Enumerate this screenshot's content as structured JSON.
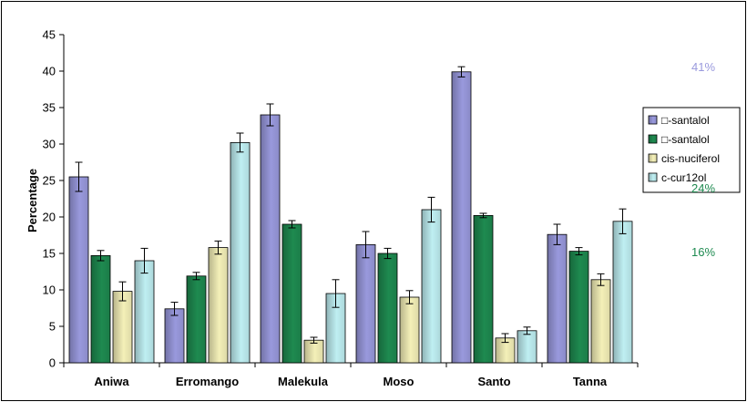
{
  "chart_data": {
    "type": "bar",
    "title": "",
    "xlabel": "",
    "ylabel": "Percentage",
    "ylim": [
      0,
      45
    ],
    "yticks": [
      0,
      5,
      10,
      15,
      20,
      25,
      30,
      35,
      40,
      45
    ],
    "grid": false,
    "legend_position": "right",
    "categories": [
      "Aniwa",
      "Erromango",
      "Malekula",
      "Moso",
      "Santo",
      "Tanna"
    ],
    "series": [
      {
        "name": "□-santalol",
        "color": "#9999dd",
        "values": [
          25.5,
          7.4,
          34.0,
          16.2,
          39.9,
          17.6
        ],
        "errors": [
          2.0,
          0.9,
          1.5,
          1.8,
          0.7,
          1.4
        ]
      },
      {
        "name": "□-santalol",
        "color": "#1e8a50",
        "values": [
          14.7,
          11.9,
          19.0,
          15.0,
          20.2,
          15.3
        ],
        "errors": [
          0.7,
          0.5,
          0.5,
          0.7,
          0.3,
          0.5
        ]
      },
      {
        "name": "cis-nuciferol",
        "color": "#f4f0b8",
        "values": [
          9.8,
          15.8,
          3.1,
          9.0,
          3.4,
          11.4
        ],
        "errors": [
          1.3,
          0.9,
          0.4,
          0.9,
          0.6,
          0.8
        ]
      },
      {
        "name": "c-cur12ol",
        "color": "#bfeff2",
        "values": [
          14.0,
          30.2,
          9.5,
          21.0,
          4.4,
          19.4
        ],
        "errors": [
          1.7,
          1.3,
          1.9,
          1.7,
          0.5,
          1.7
        ]
      }
    ],
    "annotations": [
      {
        "text": "41%",
        "color": "#9999dd"
      },
      {
        "text": "24%",
        "color": "#1e8a50"
      },
      {
        "text": "16%",
        "color": "#1e8a50"
      }
    ]
  }
}
